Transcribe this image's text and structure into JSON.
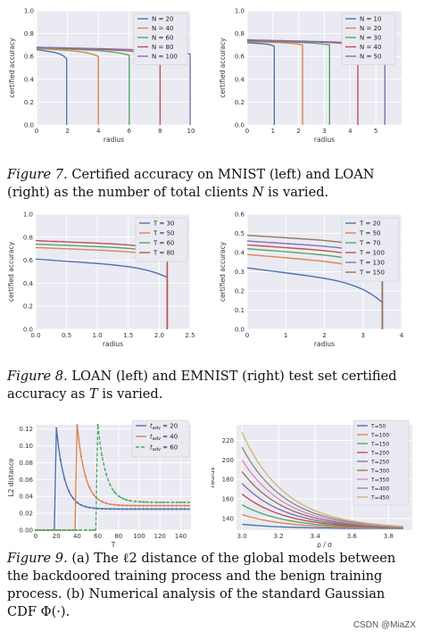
{
  "captions": [
    {
      "label": "Figure 7.",
      "text": "Certified accuracy on MNIST (left) and LOAN (right) as the number of total clients",
      "var": "N",
      "tail": " is varied."
    },
    {
      "label": "Figure 8.",
      "text": "LOAN (left) and EMNIST (right) test set certified accuracy as",
      "var": "T",
      "tail": " is varied."
    },
    {
      "label": "Figure 9.",
      "text": "(a) The ℓ2 distance of the global models between the backdoored training process and the benign training process. (b) Numerical analysis of the standard Gaussian CDF Φ(·).",
      "var": "",
      "tail": ""
    }
  ],
  "watermark": "CSDN @MiaZX",
  "chart_data": [
    {
      "id": "f7a",
      "type": "line",
      "xlabel": "radius",
      "ylabel": "certified accuracy",
      "xlim": [
        0,
        10
      ],
      "ylim": [
        0,
        1.0
      ],
      "xticks": [
        0,
        2,
        4,
        6,
        8,
        10
      ],
      "yticks": [
        0.0,
        0.2,
        0.4,
        0.6,
        0.8,
        1.0
      ],
      "legend": "top-right",
      "grid": true,
      "series": [
        {
          "name": "N = 20",
          "color": "#4c72b0",
          "start": 0.66,
          "drop": 1.95,
          "end": 0.58
        },
        {
          "name": "N = 40",
          "color": "#dd8452",
          "start": 0.67,
          "drop": 4.0,
          "end": 0.6
        },
        {
          "name": "N = 60",
          "color": "#55a868",
          "start": 0.675,
          "drop": 6.0,
          "end": 0.61
        },
        {
          "name": "N = 80",
          "color": "#c44e52",
          "start": 0.68,
          "drop": 8.0,
          "end": 0.61
        },
        {
          "name": "N = 100",
          "color": "#8172b2",
          "start": 0.68,
          "drop": 9.95,
          "end": 0.62
        }
      ]
    },
    {
      "id": "f7b",
      "type": "line",
      "xlabel": "radius",
      "ylabel": "certified accuracy",
      "xlim": [
        0,
        6
      ],
      "ylim": [
        0,
        1.0
      ],
      "xticks": [
        0,
        1,
        2,
        3,
        4,
        5
      ],
      "yticks": [
        0.0,
        0.2,
        0.4,
        0.6,
        0.8,
        1.0
      ],
      "legend": "top-right",
      "grid": true,
      "series": [
        {
          "name": "N = 10",
          "color": "#4c72b0",
          "start": 0.72,
          "drop": 1.05,
          "end": 0.69
        },
        {
          "name": "N = 20",
          "color": "#dd8452",
          "start": 0.73,
          "drop": 2.15,
          "end": 0.7
        },
        {
          "name": "N = 30",
          "color": "#55a868",
          "start": 0.735,
          "drop": 3.2,
          "end": 0.7
        },
        {
          "name": "N = 40",
          "color": "#c44e52",
          "start": 0.74,
          "drop": 4.3,
          "end": 0.7
        },
        {
          "name": "N = 50",
          "color": "#8172b2",
          "start": 0.745,
          "drop": 5.35,
          "end": 0.69
        }
      ]
    },
    {
      "id": "f8a",
      "type": "line",
      "xlabel": "radius",
      "ylabel": "certified accuracy",
      "xlim": [
        0,
        2.5
      ],
      "ylim": [
        0,
        1.0
      ],
      "xticks": [
        0.0,
        0.5,
        1.0,
        1.5,
        2.0,
        2.5
      ],
      "yticks": [
        0.0,
        0.2,
        0.4,
        0.6,
        0.8,
        1.0
      ],
      "legend": "top-right",
      "grid": true,
      "series": [
        {
          "name": "T = 30",
          "color": "#4c72b0",
          "start": 0.61,
          "drop": 2.13,
          "end": 0.45
        },
        {
          "name": "T = 50",
          "color": "#dd8452",
          "start": 0.71,
          "drop": 2.13,
          "end": 0.62
        },
        {
          "name": "T = 60",
          "color": "#55a868",
          "start": 0.74,
          "drop": 2.13,
          "end": 0.65
        },
        {
          "name": "T = 80",
          "color": "#c44e52",
          "start": 0.77,
          "drop": 2.13,
          "end": 0.68
        }
      ]
    },
    {
      "id": "f8b",
      "type": "line",
      "xlabel": "radius",
      "ylabel": "certified accuracy",
      "xlim": [
        0,
        4
      ],
      "ylim": [
        0,
        0.6
      ],
      "xticks": [
        0,
        1,
        2,
        3,
        4
      ],
      "yticks": [
        0.0,
        0.1,
        0.2,
        0.3,
        0.4,
        0.5,
        0.6
      ],
      "legend": "top-right",
      "grid": true,
      "series": [
        {
          "name": "T = 20",
          "color": "#4c72b0",
          "start": 0.32,
          "drop": 3.5,
          "end": 0.14
        },
        {
          "name": "T = 50",
          "color": "#dd8452",
          "start": 0.39,
          "drop": 3.5,
          "end": 0.27
        },
        {
          "name": "T = 70",
          "color": "#55a868",
          "start": 0.42,
          "drop": 3.5,
          "end": 0.31
        },
        {
          "name": "T = 100",
          "color": "#c44e52",
          "start": 0.44,
          "drop": 3.5,
          "end": 0.34
        },
        {
          "name": "T = 130",
          "color": "#8172b2",
          "start": 0.46,
          "drop": 3.5,
          "end": 0.37
        },
        {
          "name": "T = 150",
          "color": "#937860",
          "start": 0.49,
          "drop": 3.5,
          "end": 0.4
        }
      ]
    },
    {
      "id": "f9a",
      "type": "line",
      "xlabel": "T",
      "ylabel": "L2 distance",
      "xlim": [
        0,
        150
      ],
      "ylim": [
        0,
        0.125
      ],
      "xticks": [
        0,
        20,
        40,
        60,
        80,
        100,
        120,
        140
      ],
      "yticks": [
        0.0,
        0.02,
        0.04,
        0.06,
        0.08,
        0.1,
        0.12
      ],
      "legend": "top-right",
      "grid": true,
      "series": [
        {
          "name": "t_adv = 20",
          "sub": "adv",
          "val": " = 20",
          "color": "#4c72b0",
          "dash": "",
          "t0": 20,
          "peak": 0.121,
          "tail": 0.025
        },
        {
          "name": "t_adv = 40",
          "sub": "adv",
          "val": " = 40",
          "color": "#dd8452",
          "dash": "",
          "t0": 40,
          "peak": 0.125,
          "tail": 0.029
        },
        {
          "name": "t_adv = 60",
          "sub": "adv",
          "val": " = 60",
          "color": "#55a868",
          "dash": "4,2",
          "t0": 60,
          "peak": 0.125,
          "tail": 0.033
        }
      ]
    },
    {
      "id": "f9b",
      "type": "line",
      "xlabel": "ρ / σ",
      "ylabel": "radius",
      "xlim": [
        2.97,
        3.93
      ],
      "ylim": [
        128,
        236
      ],
      "xticks": [
        3.0,
        3.2,
        3.4,
        3.6,
        3.8
      ],
      "yticks": [
        140,
        160,
        180,
        200,
        220
      ],
      "legend": "top-right",
      "grid": true,
      "series": [
        {
          "name": "T=50",
          "color": "#4c72b0",
          "y0": 134
        },
        {
          "name": "T=100",
          "color": "#dd8452",
          "y0": 144
        },
        {
          "name": "T=150",
          "color": "#55a868",
          "y0": 154
        },
        {
          "name": "T=200",
          "color": "#c44e52",
          "y0": 165
        },
        {
          "name": "T=250",
          "color": "#8172b2",
          "y0": 176
        },
        {
          "name": "T=300",
          "color": "#937860",
          "y0": 188
        },
        {
          "name": "T=350",
          "color": "#da8bc3",
          "y0": 200
        },
        {
          "name": "T=400",
          "color": "#8c8c8c",
          "y0": 213
        },
        {
          "name": "T=450",
          "color": "#ccb974",
          "y0": 228
        }
      ]
    }
  ]
}
